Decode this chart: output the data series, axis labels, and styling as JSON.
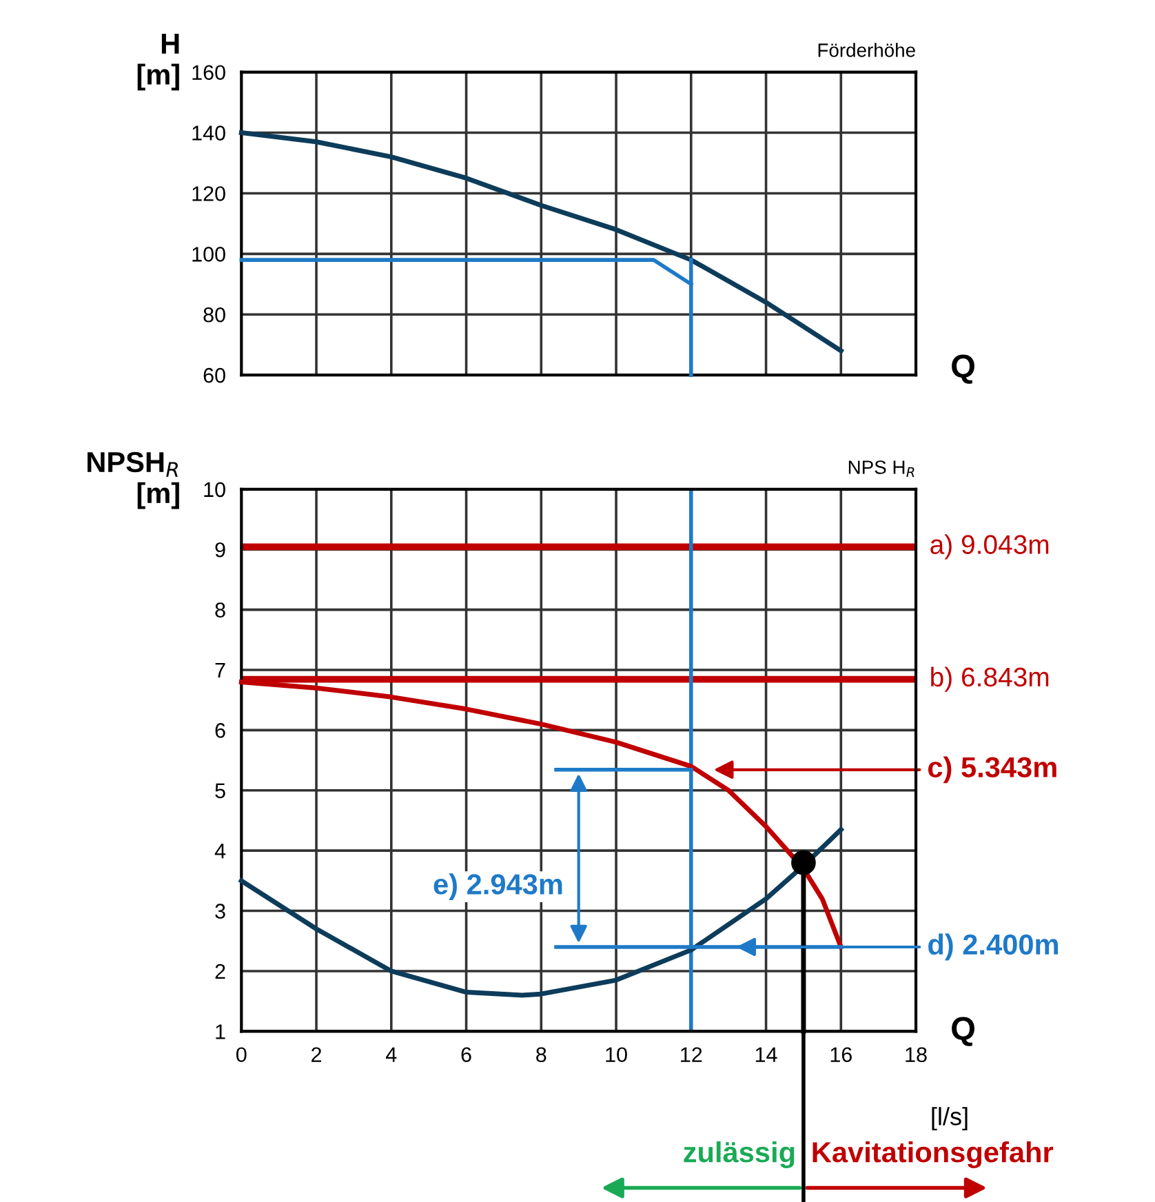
{
  "chart_data": [
    {
      "type": "line",
      "title": "Förderhöhe",
      "ylabel": "H\n[m]",
      "xlabel": "Q",
      "xlim": [
        0,
        18
      ],
      "xticks": [
        0,
        2,
        4,
        6,
        8,
        10,
        12,
        14,
        16,
        18
      ],
      "ylim": [
        60,
        160
      ],
      "yticks": [
        60,
        80,
        100,
        120,
        140,
        160
      ],
      "tick_labels": "y",
      "grid": true,
      "legend": false,
      "series": [
        {
          "color": "#0d3c5a",
          "x": [
            0,
            2,
            4,
            6,
            8,
            10,
            12,
            14,
            16
          ],
          "values": [
            140,
            137,
            132,
            125,
            116,
            108,
            98,
            84,
            68
          ]
        },
        {
          "color": "#1e7ac8",
          "x": [
            0,
            11,
            12
          ],
          "values": [
            98,
            98,
            90
          ]
        },
        {
          "color": "#1e7ac8",
          "x": [
            12,
            12
          ],
          "values": [
            98,
            60
          ]
        }
      ]
    },
    {
      "type": "line",
      "title": "NPS H$_{R}$",
      "ylabel": "NPSH$_{R}$\n[m]",
      "xlabel": "Q",
      "xlim": [
        0,
        18
      ],
      "xticks": [
        0,
        2,
        4,
        6,
        8,
        10,
        12,
        14,
        16,
        18
      ],
      "ylim": [
        1,
        10
      ],
      "yticks": [
        1,
        2,
        3,
        4,
        5,
        6,
        7,
        8,
        9,
        10
      ],
      "grid": true,
      "legend": false,
      "series": [
        {
          "color": "#c00000",
          "x": [
            0,
            2,
            4,
            6,
            8,
            10,
            12,
            13,
            14,
            15,
            15.5,
            16
          ],
          "values": [
            6.8,
            6.7,
            6.55,
            6.35,
            6.1,
            5.8,
            5.4,
            5.0,
            4.4,
            3.7,
            3.2,
            2.4
          ]
        },
        {
          "color": "#0d3c5a",
          "x": [
            0,
            2,
            4,
            6,
            7.5,
            8,
            10,
            12,
            14,
            15,
            16
          ],
          "values": [
            3.5,
            2.7,
            2.0,
            1.65,
            1.6,
            1.62,
            1.85,
            2.35,
            3.2,
            3.75,
            4.35
          ]
        },
        {
          "color": "#1e7ac8",
          "x": [
            8.4,
            12
          ],
          "values": [
            5.343,
            5.343
          ]
        },
        {
          "color": "#1e7ac8",
          "x": [
            8.4,
            16
          ],
          "values": [
            2.4,
            2.4
          ]
        },
        {
          "color": "#000000",
          "x": [
            15,
            15
          ],
          "values": [
            1,
            3.8
          ]
        },
        {
          "type": "scatter",
          "color": "#000000",
          "x": [
            15
          ],
          "values": [
            3.8
          ]
        }
      ],
      "ref_lines": [
        {
          "axis": "y",
          "value": 9.043,
          "label": "a) 9.043m",
          "color": "#c00000"
        },
        {
          "axis": "y",
          "value": 6.843,
          "label": "b) 6.843m",
          "color": "#c00000"
        },
        {
          "axis": "x",
          "value": 12,
          "color": "#1e7ac8"
        }
      ],
      "annotations": [
        "c) 5.343m",
        {
          "text": "d) 2.400m",
          "x": 13.2,
          "y": 2.4
        },
        "e) 2.943m",
        "[l/s]",
        "zulässig",
        "Kavitationsgefahr"
      ]
    }
  ]
}
